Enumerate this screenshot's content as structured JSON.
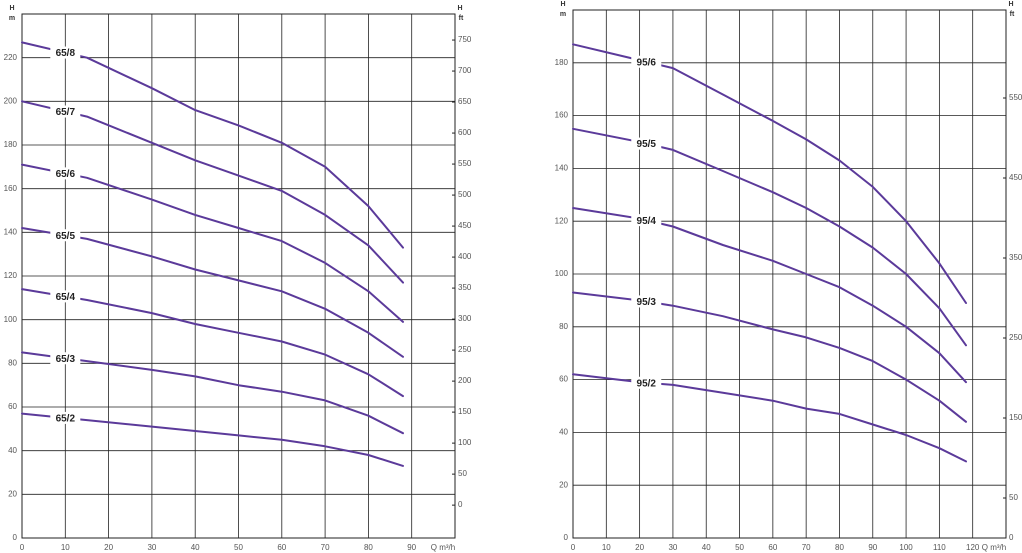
{
  "chart_data": [
    {
      "type": "line",
      "y_label": "H",
      "y_unit": "m",
      "y2_label": "H",
      "y2_unit": "ft",
      "x_label": "Q m³/h",
      "x": [
        0,
        15,
        30,
        40,
        50,
        60,
        70,
        80,
        88
      ],
      "xlim": [
        0,
        100
      ],
      "xticks": [
        0,
        10,
        20,
        30,
        40,
        50,
        60,
        70,
        80,
        90
      ],
      "ylim": [
        0,
        240
      ],
      "yticks": [
        0,
        20,
        40,
        60,
        80,
        100,
        120,
        140,
        160,
        180,
        200,
        220
      ],
      "y2lim": [
        -53,
        792
      ],
      "y2ticks": [
        0,
        50,
        100,
        150,
        200,
        250,
        300,
        350,
        400,
        450,
        500,
        550,
        600,
        650,
        700,
        750
      ],
      "grid": true,
      "series": [
        {
          "name": "65/8",
          "color": "#5b3a9a",
          "values": [
            227,
            220,
            206,
            196,
            189,
            181,
            170,
            152,
            133
          ]
        },
        {
          "name": "65/7",
          "color": "#5b3a9a",
          "values": [
            200,
            193,
            181,
            173,
            166,
            159,
            148,
            134,
            117
          ]
        },
        {
          "name": "65/6",
          "color": "#5b3a9a",
          "values": [
            171,
            165,
            155,
            148,
            142,
            136,
            126,
            113,
            99
          ]
        },
        {
          "name": "65/5",
          "color": "#5b3a9a",
          "values": [
            142,
            137,
            129,
            123,
            118,
            113,
            105,
            94,
            83
          ]
        },
        {
          "name": "65/4",
          "color": "#5b3a9a",
          "values": [
            114,
            109,
            103,
            98,
            94,
            90,
            84,
            75,
            65
          ]
        },
        {
          "name": "65/3",
          "color": "#5b3a9a",
          "values": [
            85,
            81,
            77,
            74,
            70,
            67,
            63,
            56,
            48
          ]
        },
        {
          "name": "65/2",
          "color": "#5b3a9a",
          "values": [
            57,
            54,
            51,
            49,
            47,
            45,
            42,
            38,
            33
          ]
        }
      ]
    },
    {
      "type": "line",
      "y_label": "H",
      "y_unit": "m",
      "y2_label": "H",
      "y2_unit": "ft",
      "x_label": "Q m³/h",
      "x": [
        0,
        20,
        30,
        45,
        60,
        70,
        80,
        90,
        100,
        110,
        118
      ],
      "xlim": [
        0,
        130
      ],
      "xticks": [
        0,
        10,
        20,
        30,
        40,
        50,
        60,
        70,
        80,
        90,
        100,
        110,
        120
      ],
      "ylim": [
        0,
        200
      ],
      "yticks": [
        0,
        20,
        40,
        60,
        80,
        100,
        120,
        140,
        160,
        180
      ],
      "y2lim": [
        0,
        660
      ],
      "y2ticks": [
        0,
        50,
        150,
        250,
        350,
        450,
        550
      ],
      "grid": true,
      "series": [
        {
          "name": "95/6",
          "color": "#5b3a9a",
          "values": [
            187,
            181,
            178,
            168,
            158,
            151,
            143,
            133,
            120,
            104,
            89
          ]
        },
        {
          "name": "95/5",
          "color": "#5b3a9a",
          "values": [
            155,
            150,
            147,
            139,
            131,
            125,
            118,
            110,
            100,
            87,
            73
          ]
        },
        {
          "name": "95/4",
          "color": "#5b3a9a",
          "values": [
            125,
            121,
            118,
            111,
            105,
            100,
            95,
            88,
            80,
            70,
            59
          ]
        },
        {
          "name": "95/3",
          "color": "#5b3a9a",
          "values": [
            93,
            90,
            88,
            84,
            79,
            76,
            72,
            67,
            60,
            52,
            44
          ]
        },
        {
          "name": "95/2",
          "color": "#5b3a9a",
          "values": [
            62,
            59,
            58,
            55,
            52,
            49,
            47,
            43,
            39,
            34,
            29
          ]
        }
      ]
    }
  ]
}
